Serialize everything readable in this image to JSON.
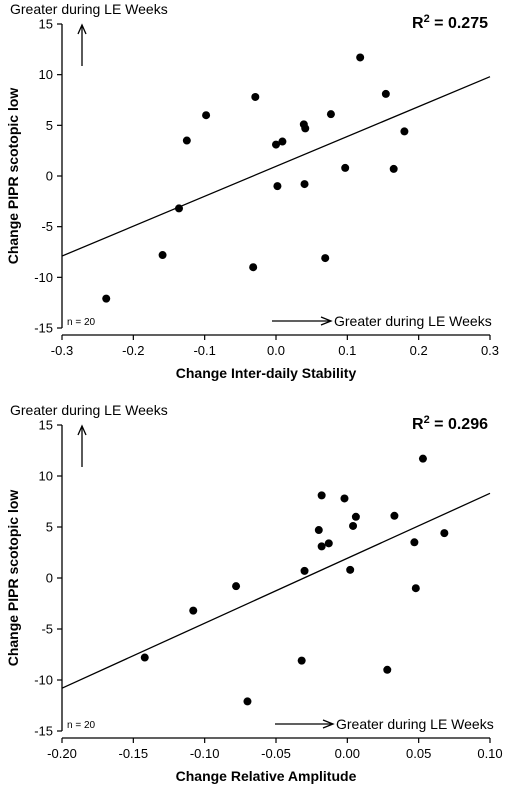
{
  "chart_data": [
    {
      "type": "scatter",
      "xlabel": "Change Inter-daily Stability",
      "ylabel": "Change PIPR scotopic low",
      "xlim": [
        -0.3,
        0.3
      ],
      "ylim": [
        -15,
        15
      ],
      "xticks": [
        "-0.3",
        "-0.2",
        "-0.1",
        "0.0",
        "0.1",
        "0.2",
        "0.3"
      ],
      "yticks": [
        "-15",
        "-10",
        "-5",
        "0",
        "5",
        "10",
        "15"
      ],
      "r_squared": "R2 = 0.275",
      "n_label": "n = 20",
      "y_annotation": "Greater during LE Weeks",
      "x_annotation": "Greater during LE Weeks",
      "points": [
        {
          "x": -0.238,
          "y": -12.1
        },
        {
          "x": -0.159,
          "y": -7.8
        },
        {
          "x": -0.136,
          "y": -3.2
        },
        {
          "x": -0.125,
          "y": 3.5
        },
        {
          "x": -0.098,
          "y": 6.0
        },
        {
          "x": -0.032,
          "y": -9.0
        },
        {
          "x": -0.029,
          "y": 7.8
        },
        {
          "x": 0.0,
          "y": 3.1
        },
        {
          "x": 0.002,
          "y": -1.0
        },
        {
          "x": 0.009,
          "y": 3.4
        },
        {
          "x": 0.039,
          "y": 5.1
        },
        {
          "x": 0.041,
          "y": 4.7
        },
        {
          "x": 0.04,
          "y": -0.8
        },
        {
          "x": 0.069,
          "y": -8.1
        },
        {
          "x": 0.077,
          "y": 6.1
        },
        {
          "x": 0.097,
          "y": 0.8
        },
        {
          "x": 0.118,
          "y": 11.7
        },
        {
          "x": 0.154,
          "y": 8.1
        },
        {
          "x": 0.165,
          "y": 0.7
        },
        {
          "x": 0.18,
          "y": 4.4
        }
      ],
      "fit_line": {
        "x": [
          -0.3,
          0.3
        ],
        "y": [
          -7.9,
          9.8
        ]
      }
    },
    {
      "type": "scatter",
      "xlabel": "Change Relative Amplitude",
      "ylabel": "Change PIPR scotopic low",
      "xlim": [
        -0.2,
        0.1
      ],
      "ylim": [
        -15,
        15
      ],
      "xticks": [
        "-0.20",
        "-0.15",
        "-0.10",
        "-0.05",
        "0.00",
        "0.05",
        "0.10"
      ],
      "yticks": [
        "-15",
        "-10",
        "-5",
        "0",
        "5",
        "10",
        "15"
      ],
      "r_squared": "R2 = 0.296",
      "n_label": "n = 20",
      "y_annotation": "Greater during LE Weeks",
      "x_annotation": "Greater during LE Weeks",
      "points": [
        {
          "x": -0.142,
          "y": -7.8
        },
        {
          "x": -0.108,
          "y": -3.2
        },
        {
          "x": -0.078,
          "y": -0.8
        },
        {
          "x": -0.07,
          "y": -12.1
        },
        {
          "x": -0.032,
          "y": -8.1
        },
        {
          "x": -0.03,
          "y": 0.7
        },
        {
          "x": -0.02,
          "y": 4.7
        },
        {
          "x": -0.018,
          "y": 8.1
        },
        {
          "x": -0.018,
          "y": 3.1
        },
        {
          "x": -0.013,
          "y": 3.4
        },
        {
          "x": -0.002,
          "y": 7.8
        },
        {
          "x": 0.002,
          "y": 0.8
        },
        {
          "x": 0.004,
          "y": 5.1
        },
        {
          "x": 0.006,
          "y": 6.0
        },
        {
          "x": 0.028,
          "y": -9.0
        },
        {
          "x": 0.033,
          "y": 6.1
        },
        {
          "x": 0.047,
          "y": 3.5
        },
        {
          "x": 0.048,
          "y": -1.0
        },
        {
          "x": 0.053,
          "y": 11.7
        },
        {
          "x": 0.068,
          "y": 4.4
        }
      ],
      "fit_line": {
        "x": [
          -0.2,
          0.1
        ],
        "y": [
          -10.8,
          8.3
        ]
      }
    }
  ]
}
